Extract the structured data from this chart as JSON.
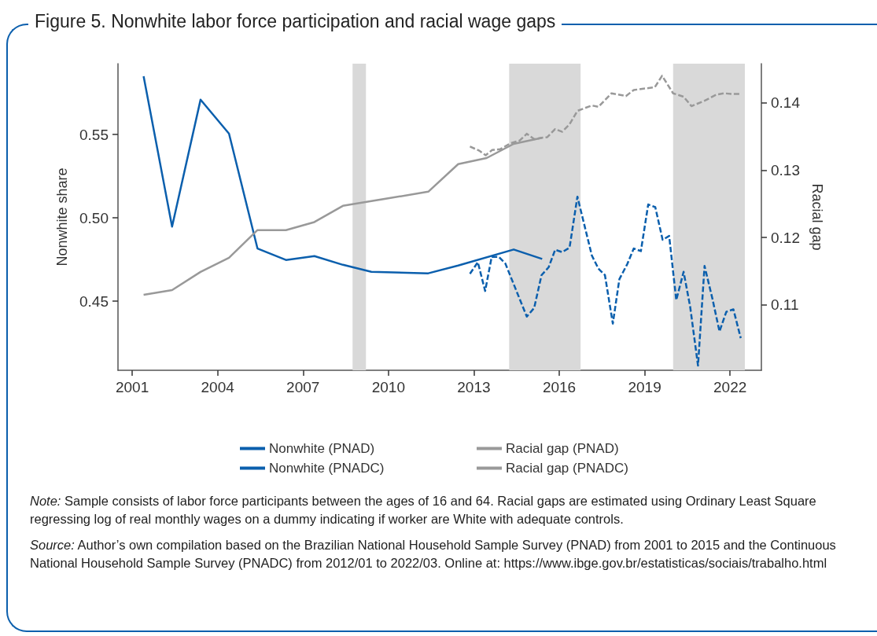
{
  "chart_data": {
    "type": "line",
    "title": "Figure 5. Nonwhite labor force participation and racial wage gaps",
    "ylabel": "Nonwhite share",
    "y2label": "Racial gap",
    "xlim": [
      2000.5,
      2023.1
    ],
    "xticks": [
      2001,
      2004,
      2007,
      2010,
      2013,
      2016,
      2019,
      2022
    ],
    "ylim": [
      0.4085,
      0.5925
    ],
    "yticks": [
      {
        "value": 0.45,
        "label": "0.45"
      },
      {
        "value": 0.5,
        "label": "0.50"
      },
      {
        "value": 0.55,
        "label": "0.55"
      }
    ],
    "y2lim": [
      0.1003,
      0.1458
    ],
    "y2ticks": [
      0.11,
      0.12,
      0.13,
      0.14
    ],
    "grid": false,
    "legend": "bottom",
    "marker": "none",
    "bands": [
      {
        "axis": "x",
        "from": 2008.74,
        "to": 2009.21,
        "color": "#d9d9d9"
      },
      {
        "axis": "x",
        "from": 2014.24,
        "to": 2016.75,
        "color": "#d9d9d9"
      },
      {
        "axis": "x",
        "from": 2020.0,
        "to": 2022.52,
        "color": "#d9d9d9"
      }
    ],
    "series": [
      {
        "name": "Nonwhite (PNAD)",
        "color": "#0b5fad",
        "line_style": "solid",
        "x": [
          2001.4,
          2002.4,
          2003.4,
          2004.4,
          2005.4,
          2006.4,
          2007.4,
          2008.4,
          2009.4,
          2011.4,
          2012.45,
          2014.4,
          2015.4
        ],
        "values": [
          0.585,
          0.4947,
          0.5709,
          0.5505,
          0.4816,
          0.4747,
          0.477,
          0.4718,
          0.4676,
          0.4667,
          0.4714,
          0.481,
          0.4753
        ]
      },
      {
        "name": "Racial gap (PNAD)",
        "color": "#999999",
        "line_style": "solid",
        "axis": "y2",
        "x": [
          2001.4,
          2002.4,
          2003.4,
          2004.4,
          2005.4,
          2006.4,
          2007.4,
          2008.4,
          2009.4,
          2011.4,
          2012.45,
          2013.45,
          2014.4,
          2015.4
        ],
        "values": [
          0.1115,
          0.1122,
          0.1149,
          0.117,
          0.1211,
          0.1211,
          0.1223,
          0.1247,
          0.1254,
          0.1268,
          0.1309,
          0.1318,
          0.1339,
          0.1348
        ]
      },
      {
        "name": "Nonwhite (PNADC)",
        "color": "#0b5fad",
        "line_style": "dashed",
        "x": [
          2012.863,
          2013.14,
          2013.397,
          2013.627,
          2013.876,
          2014.106,
          2014.861,
          2015.119,
          2015.377,
          2015.626,
          2015.856,
          2016.104,
          2016.362,
          2016.638,
          2017.145,
          2017.375,
          2017.605,
          2017.882,
          2018.112,
          2018.388,
          2018.618,
          2018.867,
          2019.125,
          2019.373,
          2019.631,
          2019.861,
          2020.11,
          2020.368,
          2020.598,
          2020.874,
          2021.104,
          2021.381,
          2021.629,
          2021.868,
          2022.117,
          2022.375
        ],
        "values": [
          0.4664,
          0.4734,
          0.4561,
          0.4766,
          0.4766,
          0.4726,
          0.4407,
          0.4459,
          0.4656,
          0.4703,
          0.4808,
          0.4794,
          0.4821,
          0.5127,
          0.4774,
          0.4695,
          0.4656,
          0.4365,
          0.4632,
          0.4722,
          0.4816,
          0.48,
          0.508,
          0.5064,
          0.4868,
          0.4891,
          0.4506,
          0.4676,
          0.4467,
          0.4113,
          0.4711,
          0.4514,
          0.4318,
          0.4436,
          0.4451,
          0.4278
        ]
      },
      {
        "name": "Racial gap (PNADC)",
        "color": "#999999",
        "line_style": "dashed",
        "axis": "y2",
        "x": [
          2012.863,
          2013.185,
          2013.416,
          2013.646,
          2013.922,
          2014.29,
          2014.613,
          2014.861,
          2015.119,
          2015.377,
          2015.58,
          2015.856,
          2016.104,
          2016.362,
          2016.638,
          2017.145,
          2017.375,
          2017.835,
          2018.342,
          2018.618,
          2019.355,
          2019.613,
          2020.0,
          2020.368,
          2020.644,
          2021.104,
          2021.519,
          2021.795,
          2022.117,
          2022.394
        ],
        "values": [
          0.1335,
          0.1329,
          0.1322,
          0.133,
          0.1331,
          0.134,
          0.1344,
          0.1354,
          0.1346,
          0.1348,
          0.1349,
          0.1361,
          0.1357,
          0.1368,
          0.1388,
          0.1396,
          0.1394,
          0.1414,
          0.141,
          0.1419,
          0.1423,
          0.144,
          0.1414,
          0.1409,
          0.1395,
          0.1403,
          0.1412,
          0.1414,
          0.1413,
          0.1413
        ]
      }
    ],
    "annotations": [
      "Note: Sample consists of labor force participants between the ages of 16 and 64. Racial gaps are estimated using Ordinary Least Square regressing log of real monthly wages on a dummy indicating if worker are White with adequate controls.",
      "Source: Author’s own compilation based on the Brazilian National Household Sample Survey (PNAD) from 2001 to 2015 and the Continuous National Household Sample Survey (PNADC) from 2012/01 to 2022/03. Online at: https://www.ibge.gov.br/estatisticas/sociais/trabalho.html"
    ]
  }
}
